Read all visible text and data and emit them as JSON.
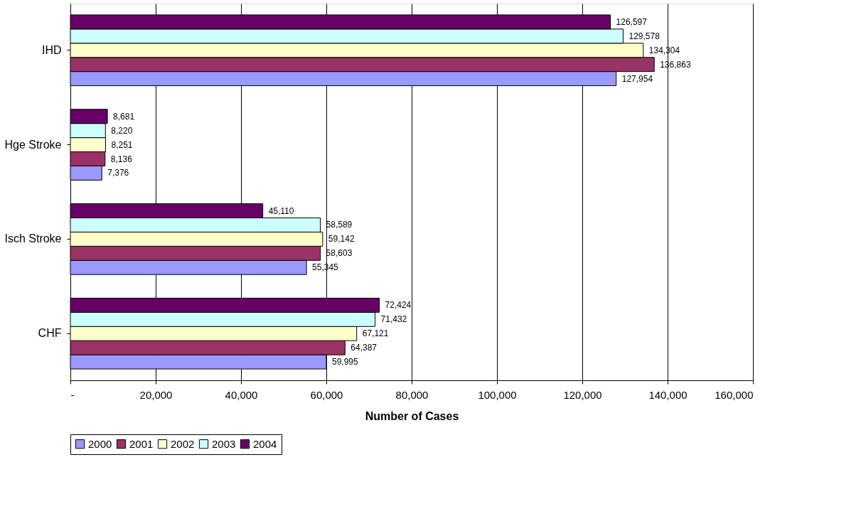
{
  "chart_data": {
    "type": "bar",
    "orientation": "horizontal",
    "xlabel": "Number of Cases",
    "categories": [
      "IHD",
      "Hge Stroke",
      "Isch Stroke",
      "CHF"
    ],
    "series": [
      {
        "name": "2000",
        "color": "#9999ff",
        "values": [
          127954,
          7376,
          55345,
          59995
        ],
        "value_labels": [
          "127,954",
          "7,376",
          "55,345",
          "59,995"
        ]
      },
      {
        "name": "2001",
        "color": "#993366",
        "values": [
          136863,
          8136,
          58603,
          64387
        ],
        "value_labels": [
          "136,863",
          "8,136",
          "58,603",
          "64,387"
        ]
      },
      {
        "name": "2002",
        "color": "#ffffcc",
        "values": [
          134304,
          8251,
          59142,
          67121
        ],
        "value_labels": [
          "134,304",
          "8,251",
          "59,142",
          "67,121"
        ]
      },
      {
        "name": "2003",
        "color": "#ccffff",
        "values": [
          129578,
          8220,
          58589,
          71432
        ],
        "value_labels": [
          "129,578",
          "8,220",
          "58,589",
          "71,432"
        ]
      },
      {
        "name": "2004",
        "color": "#660066",
        "values": [
          126597,
          8681,
          45110,
          72424
        ],
        "value_labels": [
          "126,597",
          "8,681",
          "45,110",
          "72,424"
        ]
      }
    ],
    "xlim": [
      0,
      160000
    ],
    "xticks": [
      {
        "value": 0,
        "label": "-"
      },
      {
        "value": 20000,
        "label": "20,000"
      },
      {
        "value": 40000,
        "label": "40,000"
      },
      {
        "value": 60000,
        "label": "60,000"
      },
      {
        "value": 80000,
        "label": "80,000"
      },
      {
        "value": 100000,
        "label": "100,000"
      },
      {
        "value": 120000,
        "label": "120,000"
      },
      {
        "value": 140000,
        "label": "140,000"
      },
      {
        "value": 160000,
        "label": "160,000"
      }
    ],
    "grid": "x",
    "legend": "bottom"
  }
}
